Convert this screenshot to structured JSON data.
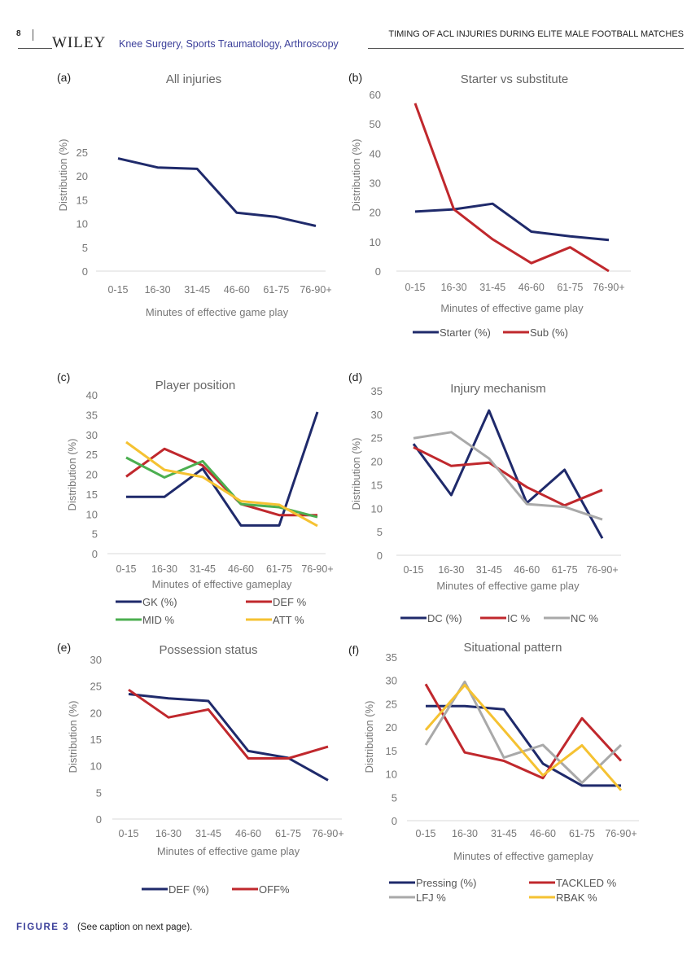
{
  "header": {
    "page_number": "8",
    "publisher": "WILEY",
    "journal": "Knee Surgery, Sports Traumatology, Arthroscopy",
    "running_title": "TIMING OF ACL INJURIES DURING ELITE MALE FOOTBALL MATCHES"
  },
  "caption": {
    "figure_label": "FIGURE 3",
    "text": "(See caption on next page)."
  },
  "colors": {
    "navy": "#1f2a6b",
    "red": "#c0282d",
    "green": "#4caf50",
    "yellow": "#f5c232",
    "gray": "#a9a9a9",
    "axis_text": "#777777"
  },
  "chart_data": [
    {
      "panel": "(a)",
      "type": "line",
      "title": "All injuries",
      "xlabel": "Minutes of effective game play",
      "ylabel": "Distribution (%)",
      "categories": [
        "0-15",
        "16-30",
        "31-45",
        "46-60",
        "61-75",
        "76-90+"
      ],
      "ylim": [
        0,
        25
      ],
      "yticks": [
        0,
        5,
        10,
        15,
        20,
        25
      ],
      "grid": false,
      "legend": "none",
      "series": [
        {
          "color": "#1f2a6b",
          "values": [
            23.7,
            21.8,
            21.5,
            12.3,
            11.4,
            9.5
          ]
        }
      ]
    },
    {
      "panel": "(b)",
      "type": "line",
      "title": "Starter vs substitute",
      "xlabel": "Minutes of effective game play",
      "ylabel": "Distribution (%)",
      "categories": [
        "0-15",
        "16-30",
        "31-45",
        "46-60",
        "61-75",
        "76-90+"
      ],
      "ylim": [
        0,
        60
      ],
      "yticks": [
        0,
        10,
        20,
        30,
        40,
        50,
        60
      ],
      "grid": false,
      "legend": "bottom",
      "series": [
        {
          "name": "Starter (%)",
          "color": "#1f2a6b",
          "values": [
            20.2,
            21.0,
            22.9,
            13.4,
            11.8,
            10.6
          ]
        },
        {
          "name": "Sub (%)",
          "color": "#c0282d",
          "values": [
            57.0,
            21.0,
            10.8,
            2.7,
            8.1,
            0.0
          ]
        }
      ]
    },
    {
      "panel": "(c)",
      "type": "line",
      "title": "Player position",
      "xlabel": "Minutes of effective gameplay",
      "ylabel": "Distribution (%)",
      "categories": [
        "0-15",
        "16-30",
        "31-45",
        "46-60",
        "61-75",
        "76-90+"
      ],
      "ylim": [
        0,
        40
      ],
      "yticks": [
        0,
        5,
        10,
        15,
        20,
        25,
        30,
        35,
        40
      ],
      "grid": false,
      "legend": "bottom",
      "series": [
        {
          "name": "GK (%)",
          "color": "#1f2a6b",
          "values": [
            14.3,
            14.3,
            21.4,
            7.1,
            7.1,
            35.7
          ]
        },
        {
          "name": "DEF %",
          "color": "#c0282d",
          "values": [
            19.4,
            26.4,
            22.2,
            12.5,
            9.7,
            9.7
          ]
        },
        {
          "name": "MID %",
          "color": "#4caf50",
          "values": [
            24.2,
            19.2,
            23.3,
            12.5,
            11.7,
            9.2
          ]
        },
        {
          "name": "ATT %",
          "color": "#f5c232",
          "values": [
            28.1,
            21.1,
            19.3,
            13.2,
            12.3,
            7.0
          ]
        }
      ]
    },
    {
      "panel": "(d)",
      "type": "line",
      "title": "Injury mechanism",
      "xlabel": "Minutes of effective game play",
      "ylabel": "Distribution (%)",
      "categories": [
        "0-15",
        "16-30",
        "31-45",
        "46-60",
        "61-75",
        "76-90+"
      ],
      "ylim": [
        0,
        35
      ],
      "yticks": [
        0,
        5,
        10,
        15,
        20,
        25,
        30,
        35
      ],
      "grid": false,
      "legend": "bottom",
      "series": [
        {
          "name": "DC (%)",
          "color": "#1f2a6b",
          "values": [
            23.7,
            12.8,
            30.8,
            11.1,
            18.2,
            3.6
          ]
        },
        {
          "name": "IC %",
          "color": "#c0282d",
          "values": [
            23.0,
            19.0,
            19.7,
            14.5,
            10.6,
            13.9
          ]
        },
        {
          "name": "NC %",
          "color": "#a9a9a9",
          "values": [
            24.9,
            26.2,
            20.6,
            10.9,
            10.3,
            7.6
          ]
        }
      ]
    },
    {
      "panel": "(e)",
      "type": "line",
      "title": "Possession status",
      "xlabel": "Minutes of effective game play",
      "ylabel": "Distribution (%)",
      "categories": [
        "0-15",
        "16-30",
        "31-45",
        "46-60",
        "61-75",
        "76-90+"
      ],
      "ylim": [
        0,
        30
      ],
      "yticks": [
        0,
        5,
        10,
        15,
        20,
        25,
        30
      ],
      "grid": false,
      "legend": "bottom",
      "series": [
        {
          "name": "DEF (%)",
          "color": "#1f2a6b",
          "values": [
            23.5,
            22.7,
            22.2,
            12.8,
            11.5,
            7.3
          ]
        },
        {
          "name": "OFF%",
          "color": "#c0282d",
          "values": [
            24.3,
            19.1,
            20.6,
            11.4,
            11.4,
            13.6
          ]
        }
      ]
    },
    {
      "panel": "(f)",
      "type": "line",
      "title": "Situational pattern",
      "xlabel": "Minutes of effective gameplay",
      "ylabel": "Distribution (%)",
      "categories": [
        "0-15",
        "16-30",
        "31-45",
        "46-60",
        "61-75",
        "76-90+"
      ],
      "ylim": [
        0,
        35
      ],
      "yticks": [
        0,
        5,
        10,
        15,
        20,
        25,
        30,
        35
      ],
      "grid": false,
      "legend": "bottom",
      "series": [
        {
          "name": "Pressing (%)",
          "color": "#1f2a6b",
          "values": [
            24.5,
            24.5,
            23.8,
            12.2,
            7.5,
            7.5
          ]
        },
        {
          "name": "TACKLED %",
          "color": "#c0282d",
          "values": [
            29.2,
            14.6,
            12.8,
            9.1,
            21.9,
            12.8
          ]
        },
        {
          "name": "LFJ %",
          "color": "#a9a9a9",
          "values": [
            16.2,
            29.7,
            13.5,
            16.2,
            8.1,
            16.2
          ]
        },
        {
          "name": "RBAK %",
          "color": "#f5c232",
          "values": [
            19.4,
            29.0,
            19.4,
            9.7,
            16.1,
            6.5
          ]
        }
      ]
    }
  ]
}
